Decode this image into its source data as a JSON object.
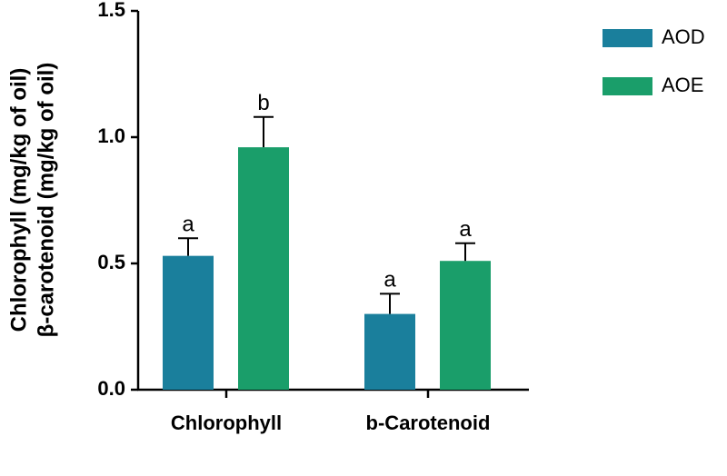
{
  "chart_data": {
    "type": "bar",
    "ylabel": [
      "Chlorophyll (mg/kg of oil)",
      "β-carotenoid (mg/kg of oil)"
    ],
    "categories": [
      "Chlorophyll",
      "b-Carotenoid"
    ],
    "series": [
      {
        "name": "AOD",
        "color": "#1a7f9c",
        "values": [
          0.53,
          0.3
        ],
        "errors": [
          0.07,
          0.08
        ],
        "annotations": [
          "a",
          "a"
        ]
      },
      {
        "name": "AOE",
        "color": "#1a9e6a",
        "values": [
          0.96,
          0.51
        ],
        "errors": [
          0.12,
          0.07
        ],
        "annotations": [
          "b",
          "a"
        ]
      }
    ],
    "ylim": [
      0,
      1.5
    ],
    "yticks": [
      {
        "value": 0,
        "label": "0.0"
      },
      0.5,
      {
        "value": 1,
        "label": "1.0"
      },
      1.5
    ],
    "legend": "right"
  }
}
